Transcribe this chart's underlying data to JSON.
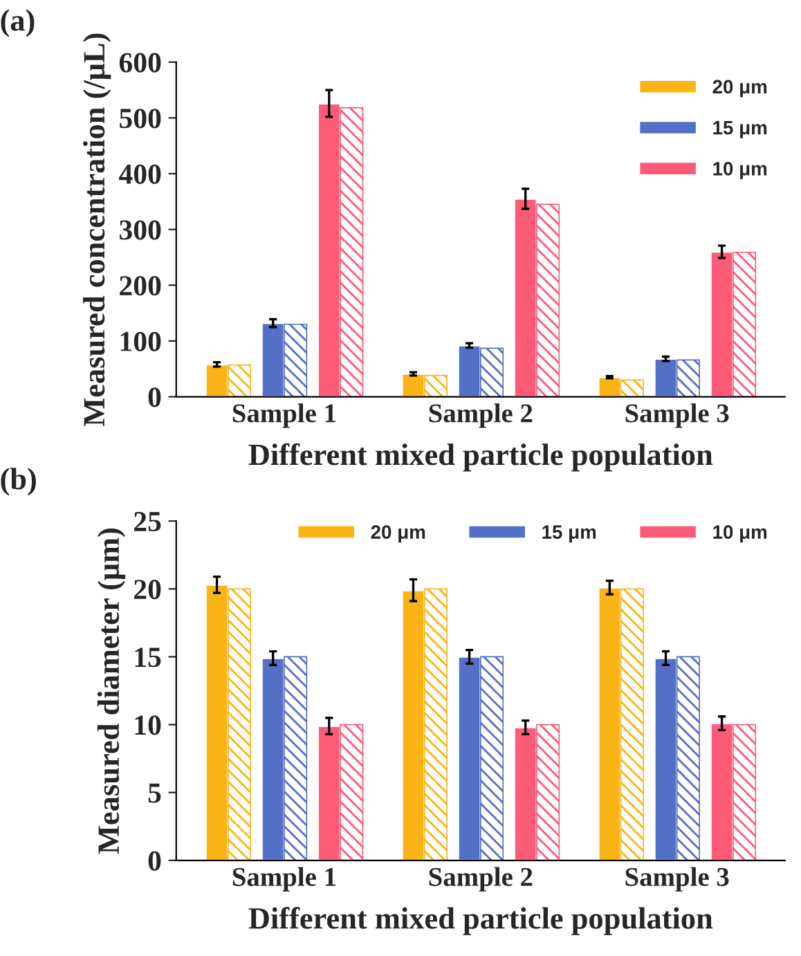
{
  "chart_data": [
    {
      "type": "bar",
      "title": "(a)",
      "xlabel": "Different mixed particle population",
      "ylabel": "Measured concentration (/μL)",
      "categories": [
        "Sample 1",
        "Sample 2",
        "Sample 3"
      ],
      "ylim": [
        0,
        600
      ],
      "yticks": [
        0,
        100,
        200,
        300,
        400,
        500,
        600
      ],
      "grid": false,
      "legend": "top right",
      "series": [
        {
          "name": "20 μm",
          "color": "#fbb416",
          "values": [
            58,
            41,
            35
          ],
          "errors": [
            4,
            3,
            2
          ]
        },
        {
          "color": "#fbb416",
          "values": [
            57,
            38,
            30
          ]
        },
        {
          "name": "15 μm",
          "color": "#5470c6",
          "values": [
            132,
            92,
            68
          ],
          "errors": [
            7,
            4,
            4
          ]
        },
        {
          "color": "#5470c6",
          "values": [
            130,
            87,
            66
          ]
        },
        {
          "name": "10 μm",
          "color": "#fd5b78",
          "values": [
            526,
            355,
            260
          ],
          "errors": [
            24,
            18,
            11
          ]
        },
        {
          "color": "#fd5b78",
          "values": [
            518,
            345,
            259
          ]
        }
      ]
    },
    {
      "type": "bar",
      "title": "(b)",
      "xlabel": "Different mixed particle population",
      "ylabel": "Measured diameter (μm)",
      "categories": [
        "Sample 1",
        "Sample 2",
        "Sample 3"
      ],
      "ylim": [
        0,
        25
      ],
      "yticks": [
        0,
        5,
        10,
        15,
        20,
        25
      ],
      "grid": false,
      "legend": "top",
      "series": [
        {
          "name": "20 μm",
          "color": "#fbb416",
          "values": [
            20.3,
            19.9,
            20.1
          ],
          "errors": [
            0.6,
            0.8,
            0.5
          ]
        },
        {
          "color": "#fbb416",
          "values": [
            20,
            20,
            20
          ]
        },
        {
          "name": "15 μm",
          "color": "#5470c6",
          "values": [
            14.9,
            15.0,
            14.9
          ],
          "errors": [
            0.5,
            0.5,
            0.5
          ]
        },
        {
          "color": "#5470c6",
          "values": [
            15,
            15,
            15
          ]
        },
        {
          "name": "10 μm",
          "color": "#fd5b78",
          "values": [
            9.9,
            9.8,
            10.1
          ],
          "errors": [
            0.6,
            0.5,
            0.5
          ]
        },
        {
          "color": "#fd5b78",
          "values": [
            10,
            10,
            10
          ]
        }
      ]
    }
  ]
}
